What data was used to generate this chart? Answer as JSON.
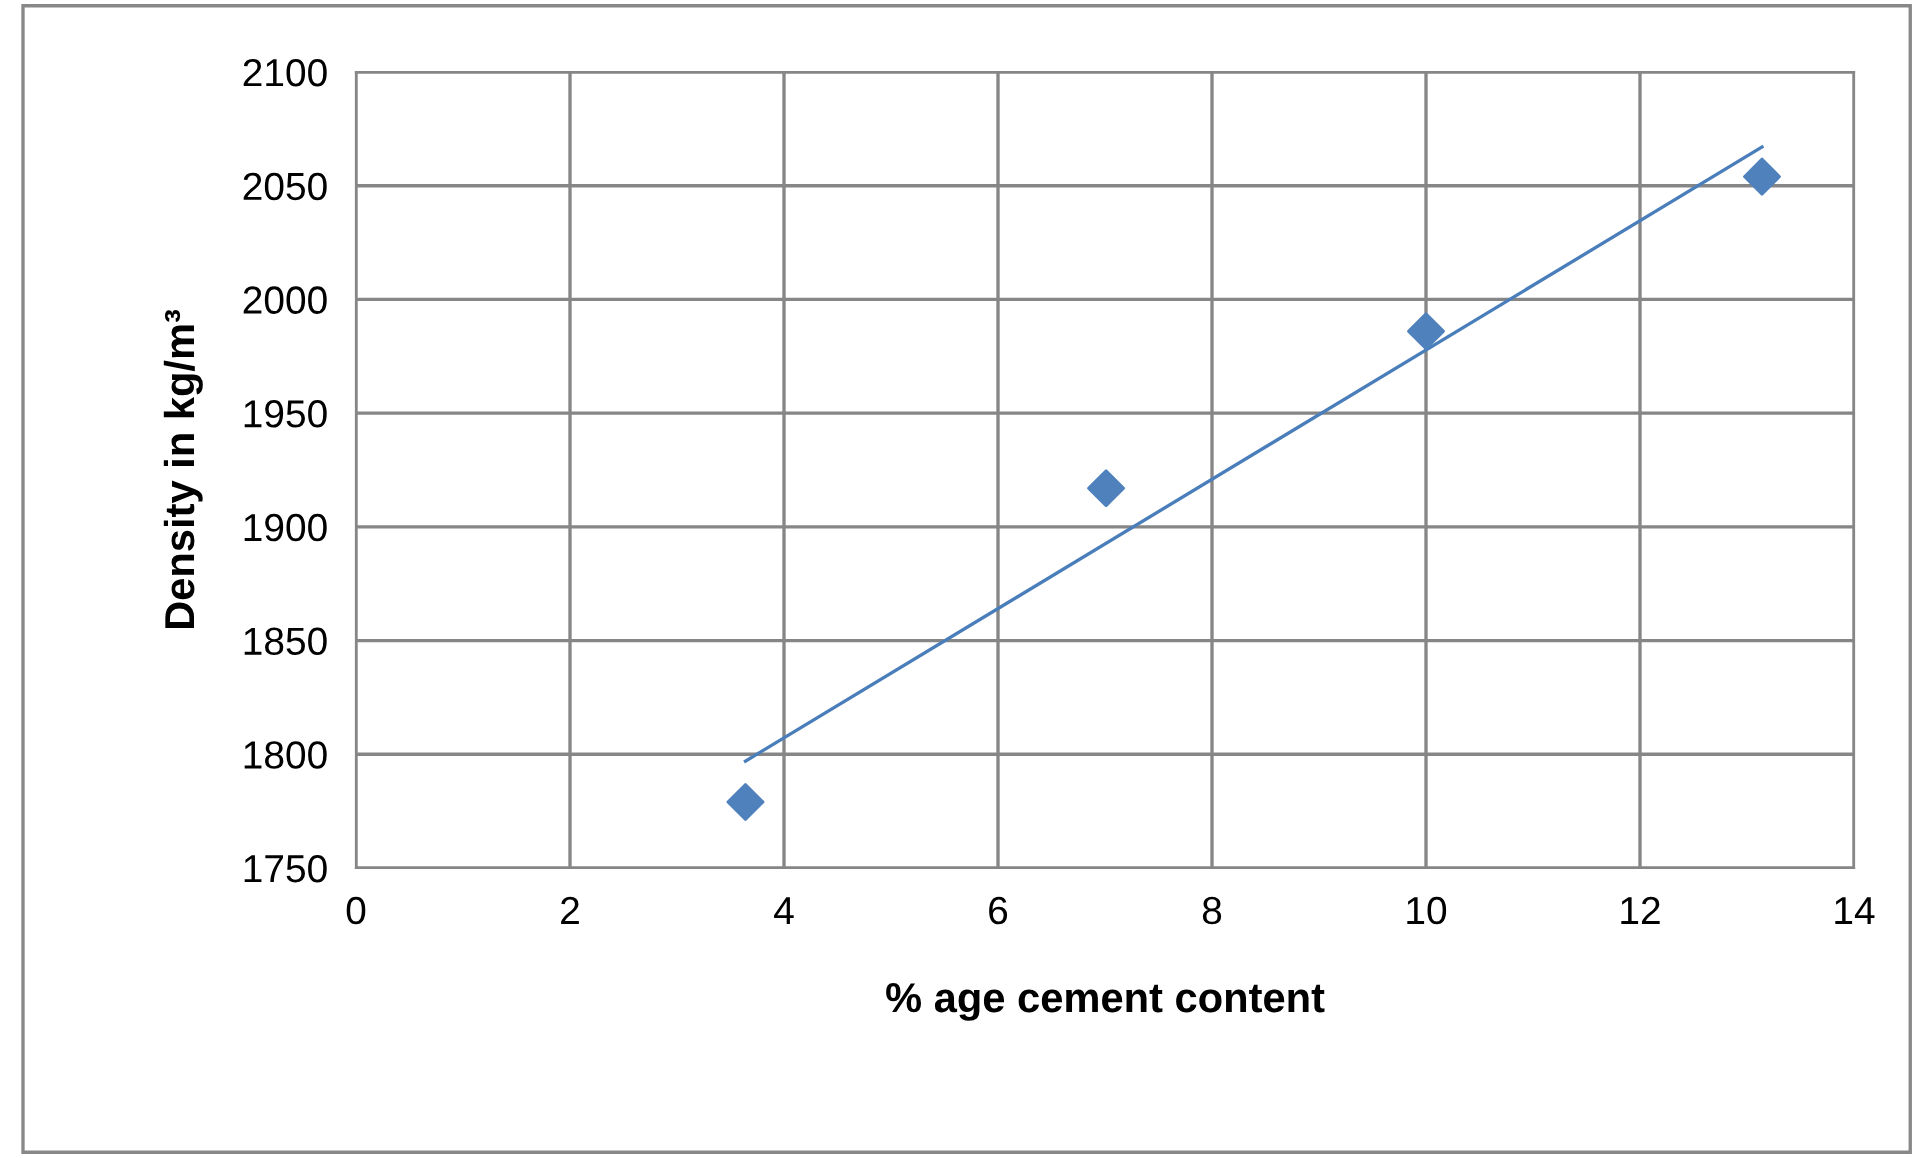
{
  "chart_data": {
    "type": "scatter",
    "xlabel": "% age cement content",
    "ylabel": "Density in kg/m³",
    "x": [
      3.64,
      7.01,
      10.0,
      13.14
    ],
    "series": [
      {
        "color": "#4f81bd",
        "marker": "diamond",
        "values": [
          1779,
          1917,
          1986,
          2054
        ]
      },
      {
        "type": "line",
        "color": "#4a7ebb",
        "marker": "none",
        "x": [
          3.64,
          13.14
        ],
        "values": [
          1797,
          2067
        ]
      }
    ],
    "xlim": [
      0,
      14
    ],
    "xticks": [
      0,
      2,
      4,
      6,
      8,
      10,
      12,
      14
    ],
    "ylim": [
      1750,
      2100
    ],
    "yticks": [
      1750,
      1800,
      1850,
      1900,
      1950,
      2000,
      2050,
      2100
    ],
    "grid": true,
    "legend": false
  }
}
